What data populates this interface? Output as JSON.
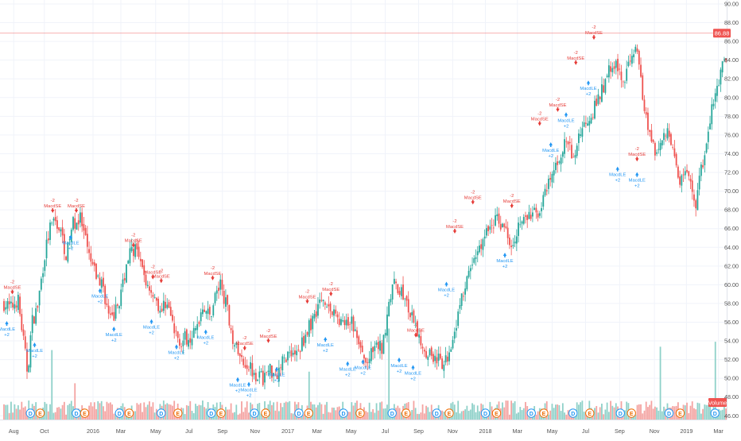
{
  "colors": {
    "up": "#26a69a",
    "down": "#ef5350",
    "vol_up": "#8fd1c9",
    "vol_down": "#f4a3a1",
    "grid": "#f0f3fa",
    "axis_text": "#555555",
    "last_price_line": "#ef5350",
    "long_signal": "#2196f3",
    "short_signal": "#e53935",
    "event_dividend": "#2196f3",
    "event_earnings": "#ef6c00"
  },
  "chart_data": {
    "type": "candlestick",
    "ylim": [
      45.6,
      90
    ],
    "y_ticks": [
      "46.00",
      "48.00",
      "50.00",
      "52.00",
      "54.00",
      "56.00",
      "58.00",
      "60.00",
      "62.00",
      "64.00",
      "66.00",
      "68.00",
      "70.00",
      "72.00",
      "74.00",
      "76.00",
      "78.00",
      "80.00",
      "82.00",
      "84.00",
      "86.00",
      "88.00",
      "90.00"
    ],
    "x_ticks": [
      {
        "label": "Aug",
        "t": 0.014
      },
      {
        "label": "Oct",
        "t": 0.058
      },
      {
        "label": "2016",
        "t": 0.128
      },
      {
        "label": "Mar",
        "t": 0.168
      },
      {
        "label": "May",
        "t": 0.218
      },
      {
        "label": "Jul",
        "t": 0.266
      },
      {
        "label": "Sep",
        "t": 0.314
      },
      {
        "label": "Nov",
        "t": 0.361
      },
      {
        "label": "2017",
        "t": 0.408
      },
      {
        "label": "Mar",
        "t": 0.45
      },
      {
        "label": "May",
        "t": 0.499
      },
      {
        "label": "Jul",
        "t": 0.548
      },
      {
        "label": "Sep",
        "t": 0.596
      },
      {
        "label": "Nov",
        "t": 0.645
      },
      {
        "label": "2018",
        "t": 0.692
      },
      {
        "label": "Mar",
        "t": 0.738
      },
      {
        "label": "May",
        "t": 0.788
      },
      {
        "label": "Jul",
        "t": 0.836
      },
      {
        "label": "Sep",
        "t": 0.885
      },
      {
        "label": "Nov",
        "t": 0.935
      },
      {
        "label": "2019",
        "t": 0.981
      },
      {
        "label": "Mar",
        "t": 1.027
      }
    ],
    "price_path": [
      [
        0.0,
        58.0
      ],
      [
        0.01,
        57.5
      ],
      [
        0.02,
        58.5
      ],
      [
        0.028,
        54.0
      ],
      [
        0.034,
        50.5
      ],
      [
        0.04,
        56.0
      ],
      [
        0.048,
        57.5
      ],
      [
        0.058,
        63.0
      ],
      [
        0.066,
        66.0
      ],
      [
        0.075,
        66.8
      ],
      [
        0.082,
        65.5
      ],
      [
        0.09,
        63.0
      ],
      [
        0.098,
        66.5
      ],
      [
        0.11,
        67.0
      ],
      [
        0.122,
        63.0
      ],
      [
        0.132,
        61.0
      ],
      [
        0.142,
        60.0
      ],
      [
        0.152,
        56.0
      ],
      [
        0.16,
        57.0
      ],
      [
        0.168,
        59.0
      ],
      [
        0.178,
        63.0
      ],
      [
        0.188,
        64.0
      ],
      [
        0.196,
        62.0
      ],
      [
        0.206,
        60.0
      ],
      [
        0.216,
        59.0
      ],
      [
        0.226,
        57.0
      ],
      [
        0.234,
        58.5
      ],
      [
        0.244,
        55.0
      ],
      [
        0.254,
        54.0
      ],
      [
        0.266,
        54.5
      ],
      [
        0.276,
        55.0
      ],
      [
        0.286,
        58.0
      ],
      [
        0.296,
        56.5
      ],
      [
        0.304,
        59.0
      ],
      [
        0.312,
        60.0
      ],
      [
        0.322,
        57.0
      ],
      [
        0.33,
        54.0
      ],
      [
        0.34,
        52.0
      ],
      [
        0.352,
        51.5
      ],
      [
        0.362,
        50.5
      ],
      [
        0.372,
        50.0
      ],
      [
        0.382,
        51.0
      ],
      [
        0.392,
        50.5
      ],
      [
        0.402,
        52.0
      ],
      [
        0.412,
        53.0
      ],
      [
        0.422,
        52.5
      ],
      [
        0.432,
        54.5
      ],
      [
        0.442,
        56.0
      ],
      [
        0.452,
        58.0
      ],
      [
        0.462,
        58.5
      ],
      [
        0.47,
        57.0
      ],
      [
        0.48,
        56.5
      ],
      [
        0.49,
        55.5
      ],
      [
        0.5,
        56.0
      ],
      [
        0.51,
        53.5
      ],
      [
        0.52,
        51.5
      ],
      [
        0.528,
        52.5
      ],
      [
        0.538,
        53.5
      ],
      [
        0.544,
        53.0
      ],
      [
        0.552,
        58.0
      ],
      [
        0.56,
        60.0
      ],
      [
        0.57,
        59.5
      ],
      [
        0.578,
        58.0
      ],
      [
        0.588,
        56.0
      ],
      [
        0.596,
        54.5
      ],
      [
        0.606,
        53.0
      ],
      [
        0.616,
        52.5
      ],
      [
        0.624,
        52.0
      ],
      [
        0.632,
        51.0
      ],
      [
        0.64,
        53.0
      ],
      [
        0.65,
        56.0
      ],
      [
        0.66,
        59.0
      ],
      [
        0.67,
        61.5
      ],
      [
        0.68,
        63.5
      ],
      [
        0.69,
        65.0
      ],
      [
        0.7,
        66.5
      ],
      [
        0.71,
        67.0
      ],
      [
        0.72,
        66.0
      ],
      [
        0.73,
        64.5
      ],
      [
        0.74,
        66.5
      ],
      [
        0.75,
        67.0
      ],
      [
        0.76,
        67.5
      ],
      [
        0.77,
        68.0
      ],
      [
        0.78,
        70.0
      ],
      [
        0.79,
        72.0
      ],
      [
        0.8,
        74.0
      ],
      [
        0.81,
        75.5
      ],
      [
        0.818,
        73.0
      ],
      [
        0.826,
        76.0
      ],
      [
        0.836,
        77.5
      ],
      [
        0.846,
        78.5
      ],
      [
        0.856,
        80.0
      ],
      [
        0.866,
        82.0
      ],
      [
        0.874,
        84.0
      ],
      [
        0.882,
        83.0
      ],
      [
        0.89,
        81.5
      ],
      [
        0.898,
        84.0
      ],
      [
        0.906,
        85.5
      ],
      [
        0.914,
        83.0
      ],
      [
        0.922,
        78.0
      ],
      [
        0.93,
        76.0
      ],
      [
        0.938,
        74.0
      ],
      [
        0.946,
        75.5
      ],
      [
        0.954,
        77.0
      ],
      [
        0.962,
        74.0
      ],
      [
        0.97,
        71.0
      ],
      [
        0.978,
        72.0
      ],
      [
        0.986,
        70.5
      ],
      [
        0.994,
        68.5
      ],
      [
        1.002,
        72.0
      ],
      [
        1.01,
        75.0
      ],
      [
        1.018,
        79.0
      ],
      [
        1.028,
        82.0
      ],
      [
        1.038,
        84.5
      ],
      [
        1.046,
        86.0
      ],
      [
        1.054,
        86.5
      ]
    ],
    "last_price": 86.88,
    "last_price_label": "86.88",
    "volume_label": "Volume",
    "short_signals": [
      {
        "t": 0.012,
        "y": 58.8,
        "label": "MacdSE",
        "qty": "-2"
      },
      {
        "t": 0.07,
        "y": 67.5,
        "label": "MacdSE",
        "qty": "-2"
      },
      {
        "t": 0.104,
        "y": 67.5,
        "label": "MacdSE",
        "qty": "-2"
      },
      {
        "t": 0.186,
        "y": 63.8,
        "label": "MacdSE",
        "qty": "-2"
      },
      {
        "t": 0.214,
        "y": 60.4,
        "label": "MacdSE",
        "qty": "-2"
      },
      {
        "t": 0.226,
        "y": 60.0,
        "label": "MacdSE",
        "qty": "-2"
      },
      {
        "t": 0.3,
        "y": 60.3,
        "label": "MacdSE",
        "qty": "-2"
      },
      {
        "t": 0.346,
        "y": 52.8,
        "label": "MacdSE",
        "qty": "-2"
      },
      {
        "t": 0.38,
        "y": 53.6,
        "label": "MacdSE",
        "qty": "-2"
      },
      {
        "t": 0.436,
        "y": 57.8,
        "label": "MacdSE",
        "qty": "-2"
      },
      {
        "t": 0.47,
        "y": 58.6,
        "label": "MacdSE",
        "qty": "-2"
      },
      {
        "t": 0.592,
        "y": 54.2,
        "label": "MacdSE",
        "qty": "-2"
      },
      {
        "t": 0.648,
        "y": 65.3,
        "label": "MacdSE",
        "qty": "-2"
      },
      {
        "t": 0.674,
        "y": 68.4,
        "label": "MacdSE",
        "qty": "-2"
      },
      {
        "t": 0.73,
        "y": 68.0,
        "label": "MacdSE",
        "qty": "-2"
      },
      {
        "t": 0.77,
        "y": 76.8,
        "label": "MacdSE",
        "qty": "-2"
      },
      {
        "t": 0.796,
        "y": 78.3,
        "label": "MacdSE",
        "qty": "-2"
      },
      {
        "t": 0.822,
        "y": 83.3,
        "label": "MacdSE",
        "qty": "-2"
      },
      {
        "t": 0.848,
        "y": 86.0,
        "label": "MacdSE",
        "qty": "-2"
      },
      {
        "t": 0.91,
        "y": 73.0,
        "label": "MacdSE",
        "qty": "-2"
      }
    ],
    "long_signals": [
      {
        "t": 0.004,
        "y": 56.3,
        "label": "MacdLE",
        "qty": "+2"
      },
      {
        "t": 0.044,
        "y": 54.0,
        "label": "MacdLE",
        "qty": "+2"
      },
      {
        "t": 0.096,
        "y": 65.5,
        "label": "MacdLE",
        "qty": "+2"
      },
      {
        "t": 0.138,
        "y": 59.8,
        "label": "MacdLE",
        "qty": "+2"
      },
      {
        "t": 0.158,
        "y": 55.7,
        "label": "MacdLE",
        "qty": "+2"
      },
      {
        "t": 0.212,
        "y": 56.5,
        "label": "MacdLE",
        "qty": "+2"
      },
      {
        "t": 0.248,
        "y": 53.8,
        "label": "MacdLE",
        "qty": "+2"
      },
      {
        "t": 0.29,
        "y": 55.4,
        "label": "MacdLE",
        "qty": "+2"
      },
      {
        "t": 0.336,
        "y": 50.3,
        "label": "MacdLE",
        "qty": "+2"
      },
      {
        "t": 0.352,
        "y": 49.8,
        "label": "MacdLE",
        "qty": "+2"
      },
      {
        "t": 0.392,
        "y": 51.4,
        "label": "MacdLE",
        "qty": "+2"
      },
      {
        "t": 0.462,
        "y": 54.6,
        "label": "MacdLE",
        "qty": "+2"
      },
      {
        "t": 0.494,
        "y": 52.0,
        "label": "MacdLE",
        "qty": "+2"
      },
      {
        "t": 0.516,
        "y": 52.2,
        "label": "MacdLE",
        "qty": "+2"
      },
      {
        "t": 0.568,
        "y": 52.4,
        "label": "MacdLE",
        "qty": "+2"
      },
      {
        "t": 0.588,
        "y": 51.6,
        "label": "MacdLE",
        "qty": "+2"
      },
      {
        "t": 0.636,
        "y": 60.5,
        "label": "MacdLE",
        "qty": "+2"
      },
      {
        "t": 0.72,
        "y": 63.6,
        "label": "MacdLE",
        "qty": "+2"
      },
      {
        "t": 0.786,
        "y": 75.4,
        "label": "MacdLE",
        "qty": "+2"
      },
      {
        "t": 0.808,
        "y": 78.6,
        "label": "MacdLE",
        "qty": "+2"
      },
      {
        "t": 0.84,
        "y": 82.0,
        "label": "MacdLE",
        "qty": "+2"
      },
      {
        "t": 0.882,
        "y": 72.8,
        "label": "MacdLE",
        "qty": "+2"
      },
      {
        "t": 0.91,
        "y": 72.2,
        "label": "MacdLE",
        "qty": "+2"
      }
    ],
    "events": [
      {
        "t": 0.038,
        "kind": "D"
      },
      {
        "t": 0.052,
        "kind": "E"
      },
      {
        "t": 0.104,
        "kind": "D"
      },
      {
        "t": 0.116,
        "kind": "E"
      },
      {
        "t": 0.166,
        "kind": "D"
      },
      {
        "t": 0.18,
        "kind": "E"
      },
      {
        "t": 0.226,
        "kind": "D"
      },
      {
        "t": 0.25,
        "kind": "E"
      },
      {
        "t": 0.298,
        "kind": "D"
      },
      {
        "t": 0.312,
        "kind": "E"
      },
      {
        "t": 0.36,
        "kind": "D"
      },
      {
        "t": 0.376,
        "kind": "E"
      },
      {
        "t": 0.424,
        "kind": "D"
      },
      {
        "t": 0.438,
        "kind": "E"
      },
      {
        "t": 0.488,
        "kind": "D"
      },
      {
        "t": 0.512,
        "kind": "E"
      },
      {
        "t": 0.558,
        "kind": "D"
      },
      {
        "t": 0.578,
        "kind": "E"
      },
      {
        "t": 0.622,
        "kind": "D"
      },
      {
        "t": 0.64,
        "kind": "E"
      },
      {
        "t": 0.692,
        "kind": "D"
      },
      {
        "t": 0.708,
        "kind": "E"
      },
      {
        "t": 0.758,
        "kind": "D"
      },
      {
        "t": 0.776,
        "kind": "E"
      },
      {
        "t": 0.818,
        "kind": "D"
      },
      {
        "t": 0.842,
        "kind": "E"
      },
      {
        "t": 0.886,
        "kind": "D"
      },
      {
        "t": 0.902,
        "kind": "E"
      },
      {
        "t": 0.956,
        "kind": "D"
      },
      {
        "t": 0.972,
        "kind": "E"
      },
      {
        "t": 1.022,
        "kind": "D"
      },
      {
        "t": 1.036,
        "kind": "E"
      }
    ]
  }
}
